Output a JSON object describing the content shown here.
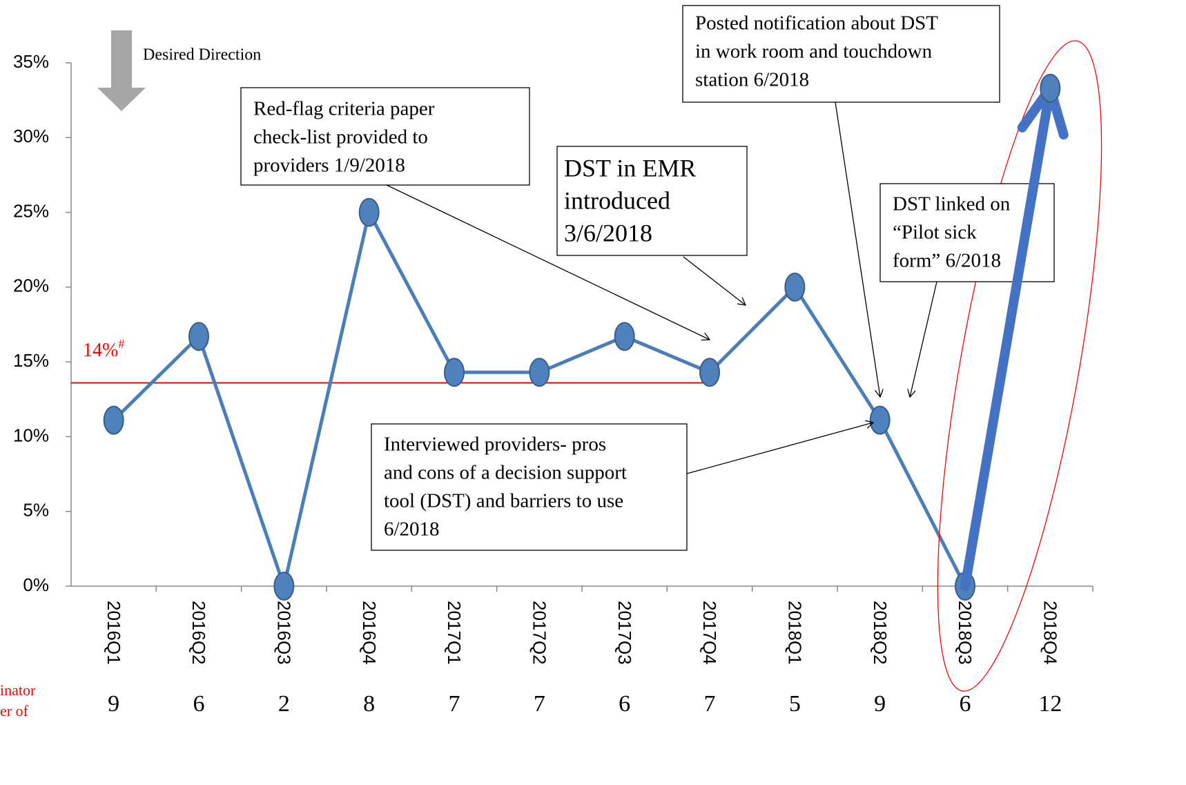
{
  "chart_data": {
    "type": "line",
    "categories": [
      "2016Q1",
      "2016Q2",
      "2016Q3",
      "2016Q4",
      "2017Q1",
      "2017Q2",
      "2017Q3",
      "2017Q4",
      "2018Q1",
      "2018Q2",
      "2018Q3",
      "2018Q4"
    ],
    "values": [
      11.1,
      16.7,
      0,
      25,
      14.3,
      14.3,
      16.7,
      14.3,
      20,
      11.1,
      0,
      33.3
    ],
    "color": "#4a7ebb",
    "marker_color": "#4f81bd",
    "ylim": [
      0,
      35
    ],
    "yticks": [
      {
        "value": 0,
        "label": "0%"
      },
      {
        "value": 5,
        "label": "5%"
      },
      {
        "value": 10,
        "label": "10%"
      },
      {
        "value": 15,
        "label": "15%"
      },
      {
        "value": 20,
        "label": "20%"
      },
      {
        "value": 25,
        "label": "25%"
      },
      {
        "value": 30,
        "label": "30%"
      },
      {
        "value": 35,
        "label": "35%"
      }
    ],
    "grid": false,
    "denominators": [
      9,
      6,
      2,
      8,
      7,
      7,
      6,
      7,
      5,
      9,
      6,
      12
    ],
    "denominator_note": [
      "inator",
      "er of"
    ],
    "reference_line": {
      "value": 13.6,
      "label": "14%",
      "superscript": "#",
      "color": "#ff0000"
    },
    "direction_note": "Desired Direction",
    "annotations": [
      {
        "lines": [
          "Red-flag criteria paper",
          "check-list provided to",
          "providers 1/9/2018"
        ]
      },
      {
        "lines": [
          "DST in EMR",
          "introduced",
          "3/6/2018"
        ]
      },
      {
        "lines": [
          "Posted notification about DST",
          "in work room and touchdown",
          "station 6/2018"
        ]
      },
      {
        "lines": [
          "DST linked on",
          "“Pilot sick",
          "form” 6/2018"
        ]
      },
      {
        "lines": [
          "Interviewed providers- pros",
          "and cons of a decision support",
          "tool (DST) and barriers to use",
          "6/2018"
        ]
      }
    ]
  }
}
